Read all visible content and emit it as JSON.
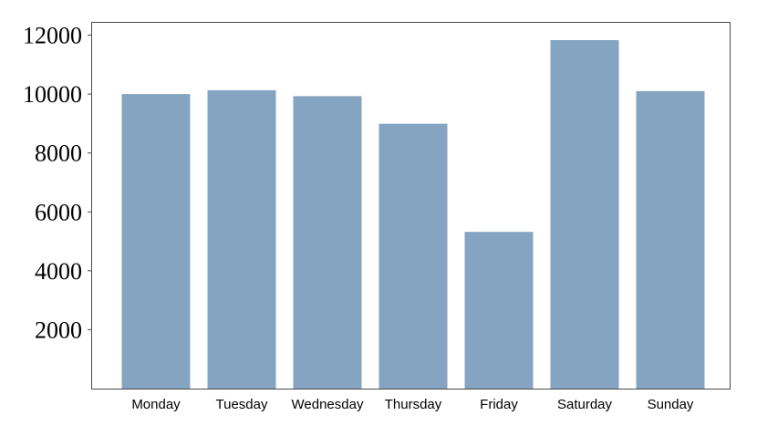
{
  "chart_data": {
    "type": "bar",
    "categories": [
      "Monday",
      "Tuesday",
      "Wednesday",
      "Thursday",
      "Friday",
      "Saturday",
      "Sunday"
    ],
    "values": [
      10000,
      10130,
      9930,
      8990,
      5320,
      11830,
      10100
    ],
    "title": "",
    "xlabel": "",
    "ylabel": "",
    "ylim": [
      0,
      12450
    ],
    "yticks": [
      "2000",
      "4000",
      "6000",
      "8000",
      "10000",
      "12000"
    ],
    "grid": false,
    "bar_color": "#85a4c2"
  }
}
